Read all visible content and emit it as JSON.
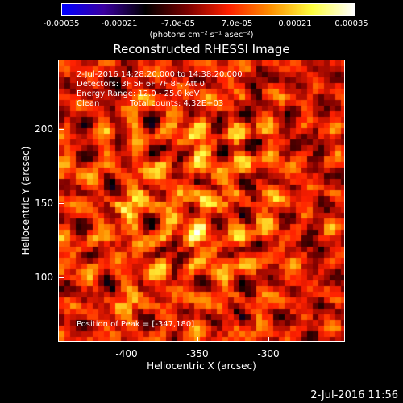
{
  "colorbar": {
    "ticks": [
      "-0.00035",
      "-0.00021",
      "-7.0e-05",
      "7.0e-05",
      "0.00021",
      "0.00035"
    ],
    "units": "(photons cm⁻² s⁻¹ asec⁻²)"
  },
  "title": "Reconstructed RHESSI Image",
  "annotations": {
    "time_range": "2-Jul-2016 14:28:20.000 to 14:38:20.000",
    "detectors": "Detectors: 3F 5F 6F 7F 8F, Att 0",
    "energy": "Energy Range: 12.0 - 25.0 keV",
    "clean": "Clean",
    "counts": "Total counts: 4.32E+03",
    "peak": "Position of Peak = [-347,180]"
  },
  "axes": {
    "x_label": "Heliocentric X (arcsec)",
    "y_label": "Heliocentric Y (arcsec)",
    "x_ticks": [
      "-400",
      "-350",
      "-300"
    ],
    "y_ticks": [
      "200",
      "150",
      "100"
    ]
  },
  "footer": {
    "date": "2-Jul-2016 11:56"
  },
  "colormap": {
    "scheme": "RHESSI blue-black-red-yellow-white",
    "colors": [
      "#0000ff",
      "#3a00a0",
      "#000000",
      "#7a0000",
      "#ff2000",
      "#ff9000",
      "#ffff40",
      "#ffffff"
    ]
  }
}
